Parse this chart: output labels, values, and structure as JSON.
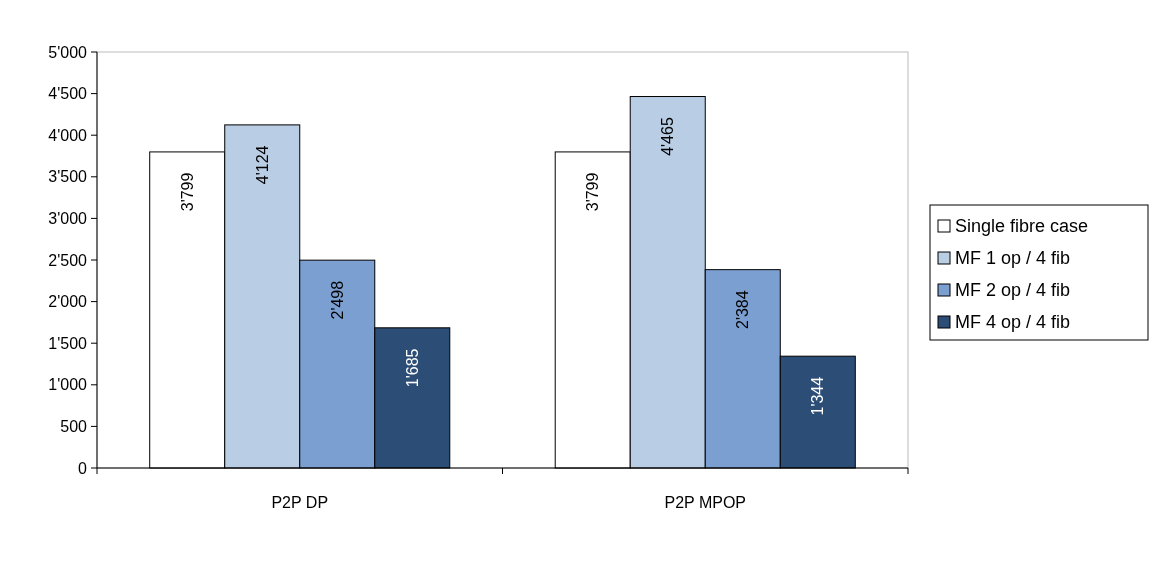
{
  "chart_data": {
    "type": "bar",
    "categories": [
      "P2P DP",
      "P2P MPOP"
    ],
    "series": [
      {
        "name": "Single fibre case",
        "color": "#ffffff",
        "values": [
          3799,
          3799
        ],
        "value_labels": [
          "3'799",
          "3'799"
        ]
      },
      {
        "name": "MF 1 op / 4 fib",
        "color": "#b9cde5",
        "values": [
          4124,
          4465
        ],
        "value_labels": [
          "4'124",
          "4'465"
        ]
      },
      {
        "name": "MF 2 op / 4 fib",
        "color": "#7c9fd1",
        "values": [
          2498,
          2384
        ],
        "value_labels": [
          "2'498",
          "2'384"
        ]
      },
      {
        "name": "MF 4 op / 4 fib",
        "color": "#2c4d75",
        "values": [
          1685,
          1344
        ],
        "value_labels": [
          "1'685",
          "1'344"
        ]
      }
    ],
    "ylim": [
      0,
      5000
    ],
    "yticks": [
      {
        "value": 0,
        "label": "0"
      },
      {
        "value": 500,
        "label": "500"
      },
      {
        "value": 1000,
        "label": "1'000"
      },
      {
        "value": 1500,
        "label": "1'500"
      },
      {
        "value": 2000,
        "label": "2'000"
      },
      {
        "value": 2500,
        "label": "2'500"
      },
      {
        "value": 3000,
        "label": "3'000"
      },
      {
        "value": 3500,
        "label": "3'500"
      },
      {
        "value": 4000,
        "label": "4'000"
      },
      {
        "value": 4500,
        "label": "4'500"
      },
      {
        "value": 5000,
        "label": "5'000"
      }
    ],
    "grid": false,
    "legend": "right"
  }
}
